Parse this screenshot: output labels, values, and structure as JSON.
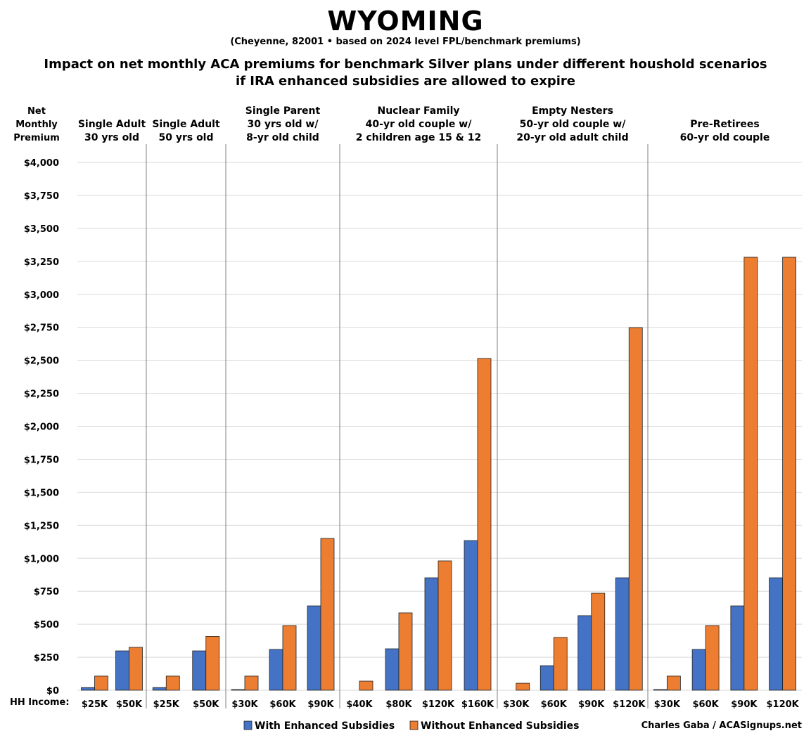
{
  "title": "WYOMING",
  "subtitle": "(Cheyenne, 82001 • based on 2024 level FPL/benchmark premiums)",
  "description_lines": [
    "Impact on net monthly ACA premiums for benchmark Silver plans under different houshold scenarios",
    "if IRA enhanced subsidies are allowed to expire"
  ],
  "credit": "Charles Gaba / ACASignups.net",
  "chart_data": {
    "type": "bar",
    "ylabel_lines": [
      "Net",
      "Monthly",
      "Premium"
    ],
    "xlabel": "HH Income:",
    "ylim": [
      0,
      4000
    ],
    "yticks": [
      0,
      250,
      500,
      750,
      1000,
      1250,
      1500,
      1750,
      2000,
      2250,
      2500,
      2750,
      3000,
      3250,
      3500,
      3750,
      4000
    ],
    "ytick_labels": [
      "$0",
      "$250",
      "$500",
      "$750",
      "$1,000",
      "$1,250",
      "$1,500",
      "$1,750",
      "$2,000",
      "$2,250",
      "$2,500",
      "$2,750",
      "$3,000",
      "$3,250",
      "$3,500",
      "$3,750",
      "$4,000"
    ],
    "grid": true,
    "legend_placement": "bottom",
    "colors": {
      "with": "#4472C4",
      "without": "#ED7D31"
    },
    "series_names": [
      "With Enhanced Subsidies",
      "Without Enhanced Subsidies"
    ],
    "groups": [
      {
        "label_lines": [
          "Single Adult",
          "30 yrs old"
        ],
        "categories": [
          "$25K",
          "$50K"
        ],
        "with": [
          20,
          298
        ],
        "without": [
          107,
          325
        ]
      },
      {
        "label_lines": [
          "Single Adult",
          "50 yrs old"
        ],
        "categories": [
          "$25K",
          "$50K"
        ],
        "with": [
          20,
          298
        ],
        "without": [
          107,
          408
        ]
      },
      {
        "label_lines": [
          "Single Parent",
          "30 yrs old w/",
          "8-yr old child"
        ],
        "categories": [
          "$30K",
          "$60K",
          "$90K"
        ],
        "with": [
          5,
          309,
          639
        ],
        "without": [
          107,
          490,
          1150
        ]
      },
      {
        "label_lines": [
          "Nuclear Family",
          "40-yr old couple w/",
          "2 children age 15 & 12"
        ],
        "categories": [
          "$40K",
          "$80K",
          "$120K",
          "$160K"
        ],
        "with": [
          0,
          314,
          852,
          1134
        ],
        "without": [
          69,
          586,
          980,
          2514
        ]
      },
      {
        "label_lines": [
          "Empty Nesters",
          "50-yr old couple w/",
          "20-yr old adult child"
        ],
        "categories": [
          "$30K",
          "$60K",
          "$90K",
          "$120K"
        ],
        "with": [
          0,
          186,
          565,
          852
        ],
        "without": [
          53,
          400,
          735,
          2748
        ]
      },
      {
        "label_lines": [
          "Pre-Retirees",
          "60-yr old couple"
        ],
        "categories": [
          "$30K",
          "$60K",
          "$90K",
          "$120K"
        ],
        "with": [
          5,
          309,
          639,
          852
        ],
        "without": [
          107,
          490,
          3281,
          3281
        ]
      }
    ]
  }
}
